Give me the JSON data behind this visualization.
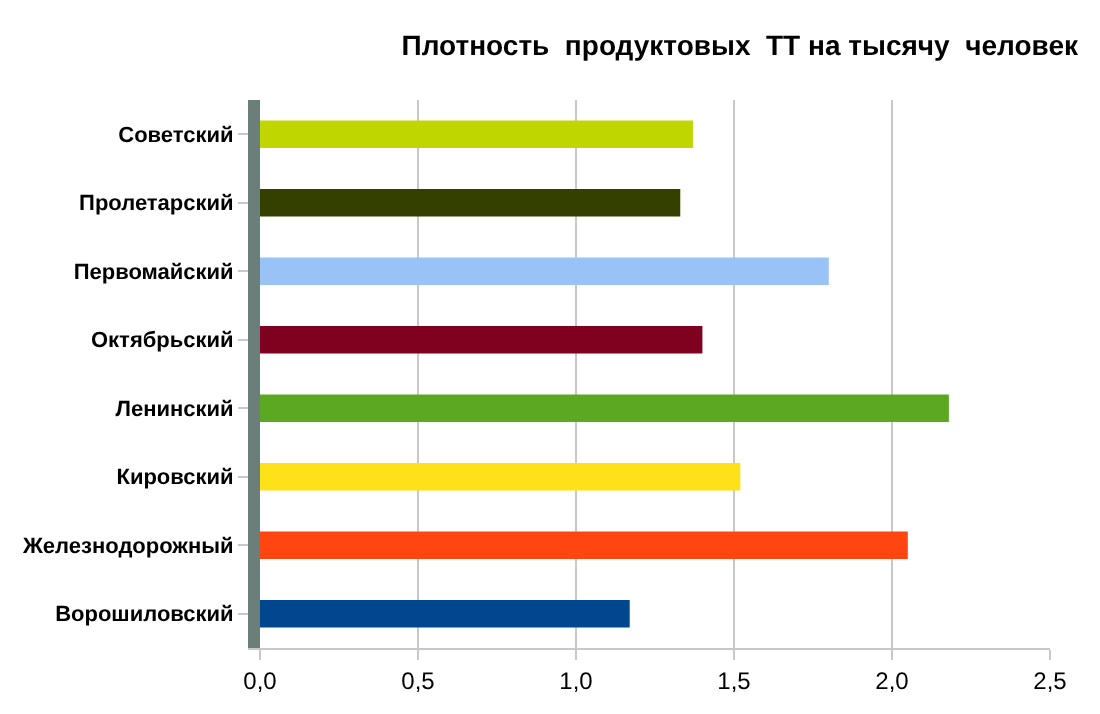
{
  "chart_data": {
    "type": "bar",
    "orientation": "horizontal",
    "title": "Плотность  продуктовых  ТТ на тысячу  человек",
    "categories": [
      "Советский",
      "Пролетарский",
      "Первомайский",
      "Октябрьский",
      "Ленинский",
      "Кировский",
      "Железнодорожный",
      "Ворошиловский"
    ],
    "values": [
      1.37,
      1.33,
      1.8,
      1.4,
      2.18,
      1.52,
      2.05,
      1.17
    ],
    "colors": [
      "#bfd600",
      "#334000",
      "#99c2f5",
      "#800020",
      "#5ca822",
      "#ffe119",
      "#ff4510",
      "#00478f"
    ],
    "xlim": [
      0,
      2.5
    ],
    "xticks": [
      {
        "value": 0,
        "label": "0,0"
      },
      {
        "value": 0.5,
        "label": "0,5"
      },
      {
        "value": 1,
        "label": "1,0"
      },
      {
        "value": 1.5,
        "label": "1,5"
      },
      {
        "value": 2,
        "label": "2,0"
      },
      {
        "value": 2.5,
        "label": "2,5"
      }
    ],
    "grid": "x"
  }
}
